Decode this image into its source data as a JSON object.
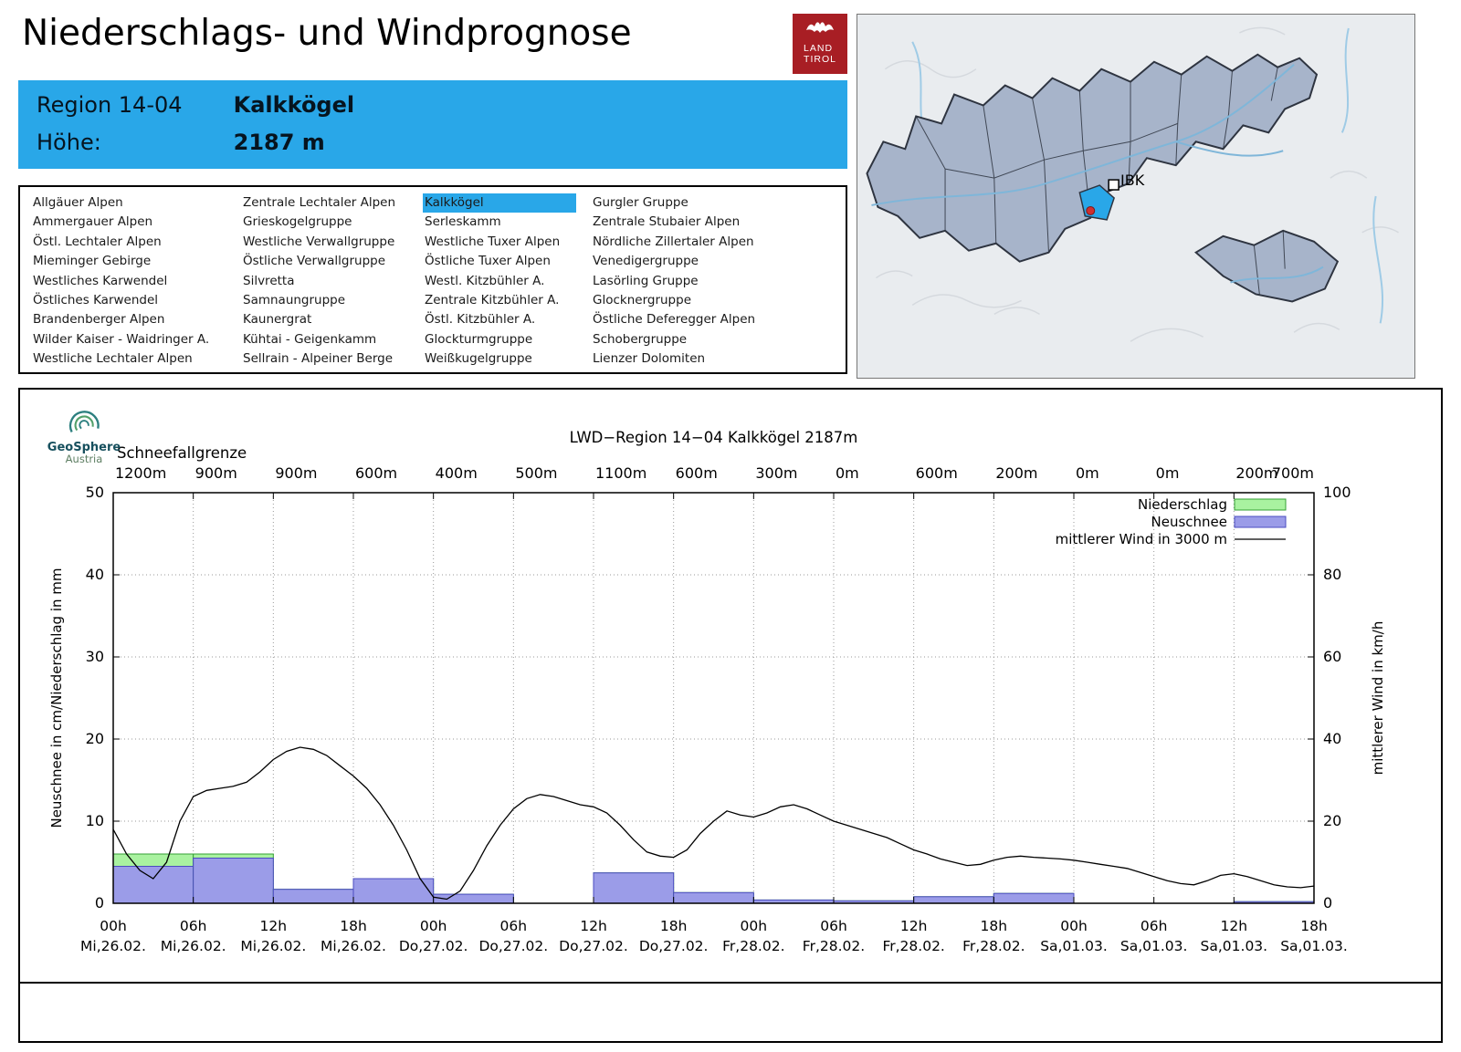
{
  "header": {
    "title": "Niederschlags- und Windprognose",
    "logo": {
      "line1": "LAND",
      "line2": "TIROL"
    }
  },
  "region_box": {
    "region_label": "Region 14-04",
    "region_value": "Kalkkögel",
    "hoehe_label": "Höhe:",
    "hoehe_value": "2187 m"
  },
  "map": {
    "marker_label": "IBK"
  },
  "geosphere": {
    "line1": "GeoSphere",
    "line2": "Austria"
  },
  "region_list": {
    "selected": "Kalkkögel",
    "columns": [
      [
        "Allgäuer Alpen",
        "Ammergauer Alpen",
        "Östl. Lechtaler Alpen",
        "Mieminger Gebirge",
        "Westliches Karwendel",
        "Östliches Karwendel",
        "Brandenberger Alpen",
        "Wilder Kaiser - Waidringer A.",
        "Westliche Lechtaler Alpen"
      ],
      [
        "Zentrale Lechtaler Alpen",
        "Grieskogelgruppe",
        "Westliche Verwallgruppe",
        "Östliche Verwallgruppe",
        "Silvretta",
        "Samnaungruppe",
        "Kaunergrat",
        "Kühtai - Geigenkamm",
        "Sellrain - Alpeiner Berge"
      ],
      [
        "Kalkkögel",
        "Serleskamm",
        "Westliche Tuxer Alpen",
        "Östliche Tuxer Alpen",
        "Westl. Kitzbühler A.",
        "Zentrale Kitzbühler A.",
        "Östl. Kitzbühler A.",
        "Glockturmgruppe",
        "Weißkugelgruppe"
      ],
      [
        "Gurgler Gruppe",
        "Zentrale Stubaier Alpen",
        "Nördliche Zillertaler Alpen",
        "Venedigergruppe",
        "Lasörling Gruppe",
        "Glocknergruppe",
        "Östliche Deferegger Alpen",
        "Schobergruppe",
        "Lienzer Dolomiten"
      ]
    ]
  },
  "chart_data": {
    "type": "bar+line",
    "title": "LWD−Region 14−04 Kalkkögel 2187m",
    "snowline_label": "Schneefallgrenze",
    "snowline_values": [
      "1200m",
      "900m",
      "900m",
      "600m",
      "400m",
      "500m",
      "1100m",
      "600m",
      "300m",
      "0m",
      "600m",
      "200m",
      "0m",
      "0m",
      "200m",
      "700m"
    ],
    "ylabel_left": "Neuschnee in cm/Niederschlag in mm",
    "ylabel_right": "mittlerer Wind in km/h",
    "ylim_left": [
      0,
      50
    ],
    "ylim_right": [
      0,
      100
    ],
    "yticks_left": [
      0,
      10,
      20,
      30,
      40,
      50
    ],
    "yticks_right": [
      0,
      20,
      40,
      60,
      80,
      100
    ],
    "x_ticks": [
      {
        "hour": "00h",
        "date": "Mi,26.02."
      },
      {
        "hour": "06h",
        "date": "Mi,26.02."
      },
      {
        "hour": "12h",
        "date": "Mi,26.02."
      },
      {
        "hour": "18h",
        "date": "Mi,26.02."
      },
      {
        "hour": "00h",
        "date": "Do,27.02."
      },
      {
        "hour": "06h",
        "date": "Do,27.02."
      },
      {
        "hour": "12h",
        "date": "Do,27.02."
      },
      {
        "hour": "18h",
        "date": "Do,27.02."
      },
      {
        "hour": "00h",
        "date": "Fr,28.02."
      },
      {
        "hour": "06h",
        "date": "Fr,28.02."
      },
      {
        "hour": "12h",
        "date": "Fr,28.02."
      },
      {
        "hour": "18h",
        "date": "Fr,28.02."
      },
      {
        "hour": "00h",
        "date": "Sa,01.03."
      },
      {
        "hour": "06h",
        "date": "Sa,01.03."
      },
      {
        "hour": "12h",
        "date": "Sa,01.03."
      },
      {
        "hour": "18h",
        "date": "Sa,01.03."
      }
    ],
    "legend": [
      {
        "label": "Niederschlag",
        "type": "box",
        "fill": "#a9f2a0",
        "stroke": "#35a035"
      },
      {
        "label": "Neuschnee",
        "type": "box",
        "fill": "#9b9ce8",
        "stroke": "#4b4cc0"
      },
      {
        "label": "mittlerer Wind in 3000 m",
        "type": "line",
        "stroke": "#000000"
      }
    ],
    "colors": {
      "niederschlag_fill": "#a9f2a0",
      "niederschlag_stroke": "#35a035",
      "neuschnee_fill": "#9b9ce8",
      "neuschnee_stroke": "#4b4cc0",
      "wind": "#000000",
      "grid": "#9a9a9a"
    },
    "bars": [
      {
        "t0": 0,
        "t1": 6,
        "niederschlag_mm": 6.0,
        "neuschnee_cm": 4.5
      },
      {
        "t0": 6,
        "t1": 12,
        "niederschlag_mm": 6.0,
        "neuschnee_cm": 5.5
      },
      {
        "t0": 12,
        "t1": 18,
        "niederschlag_mm": 1.7,
        "neuschnee_cm": 1.7
      },
      {
        "t0": 18,
        "t1": 24,
        "niederschlag_mm": 3.0,
        "neuschnee_cm": 3.0
      },
      {
        "t0": 24,
        "t1": 30,
        "niederschlag_mm": 1.1,
        "neuschnee_cm": 1.1
      },
      {
        "t0": 36,
        "t1": 42,
        "niederschlag_mm": 3.7,
        "neuschnee_cm": 3.7
      },
      {
        "t0": 42,
        "t1": 48,
        "niederschlag_mm": 1.3,
        "neuschnee_cm": 1.3
      },
      {
        "t0": 48,
        "t1": 54,
        "niederschlag_mm": 0.4,
        "neuschnee_cm": 0.4
      },
      {
        "t0": 54,
        "t1": 60,
        "niederschlag_mm": 0.3,
        "neuschnee_cm": 0.3
      },
      {
        "t0": 60,
        "t1": 66,
        "niederschlag_mm": 0.8,
        "neuschnee_cm": 0.8
      },
      {
        "t0": 66,
        "t1": 72,
        "niederschlag_mm": 1.2,
        "neuschnee_cm": 1.2
      },
      {
        "t0": 84,
        "t1": 90,
        "niederschlag_mm": 0.2,
        "neuschnee_cm": 0.2
      }
    ],
    "wind": {
      "t_start_hour": 0,
      "t_step_hours": 1,
      "kmh": [
        18,
        12,
        8,
        6,
        10,
        20,
        26,
        27.5,
        28,
        28.5,
        29.5,
        32,
        35,
        37,
        38,
        37.5,
        36,
        33.5,
        31,
        28,
        24,
        19,
        13,
        6,
        1.5,
        1,
        3,
        8,
        14,
        19,
        23,
        25.5,
        26.5,
        26,
        25,
        24,
        23.5,
        22,
        19,
        15.5,
        12.5,
        11.5,
        11.2,
        13,
        17,
        20,
        22.5,
        21.5,
        21,
        22,
        23.5,
        24,
        23,
        21.5,
        20,
        19,
        18,
        17,
        16,
        14.5,
        13,
        12,
        10.8,
        10,
        9.2,
        9.5,
        10.5,
        11.2,
        11.5,
        11.2,
        11,
        10.8,
        10.5,
        10,
        9.5,
        9,
        8.5,
        7.5,
        6.5,
        5.5,
        4.8,
        4.5,
        5.5,
        6.8,
        7.2,
        6.5,
        5.5,
        4.5,
        4,
        3.8,
        4.2
      ]
    }
  }
}
